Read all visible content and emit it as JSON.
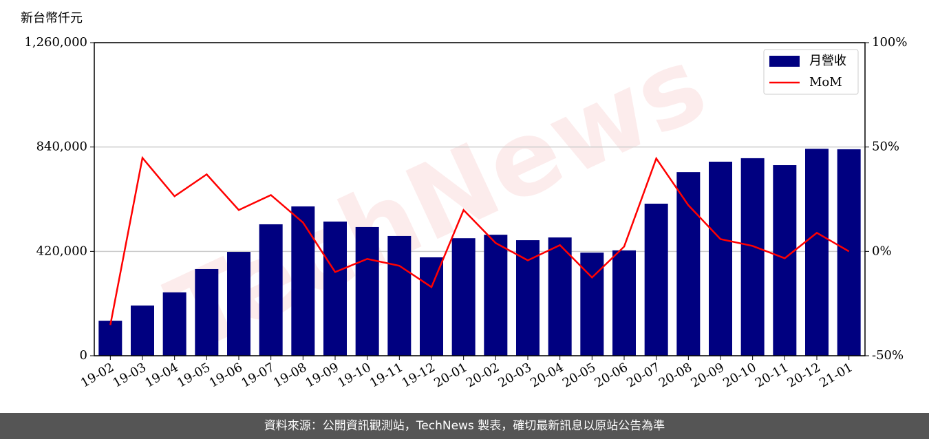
{
  "chart_data": {
    "type": "bar",
    "y_label": "新台幣仟元",
    "watermark": "TechNews",
    "categories": [
      "19-02",
      "19-03",
      "19-04",
      "19-05",
      "19-06",
      "19-07",
      "19-08",
      "19-09",
      "19-10",
      "19-11",
      "19-12",
      "20-01",
      "20-02",
      "20-03",
      "20-04",
      "20-05",
      "20-06",
      "20-07",
      "20-08",
      "20-09",
      "20-10",
      "20-11",
      "20-12",
      "21-01"
    ],
    "series": [
      {
        "name": "月營收",
        "type": "bar",
        "color": "#000080",
        "values": [
          141000,
          202000,
          255000,
          349000,
          418000,
          529000,
          601000,
          540000,
          518000,
          482000,
          396000,
          473000,
          487000,
          465000,
          476000,
          415000,
          424000,
          612000,
          739000,
          781000,
          795000,
          767000,
          833000,
          831000
        ]
      },
      {
        "name": "MoM",
        "type": "line",
        "color": "#ff0000",
        "axis": "y2",
        "values": [
          -35.3,
          44.8,
          26.4,
          36.9,
          19.8,
          27.0,
          13.8,
          -9.9,
          -3.6,
          -6.9,
          -17.1,
          19.8,
          4.0,
          -4.3,
          3.0,
          -12.5,
          2.3,
          44.5,
          22.1,
          5.9,
          2.6,
          -3.3,
          8.9,
          0
        ]
      }
    ],
    "ylim": [
      0,
      1260000
    ],
    "yticks": [
      0,
      {
        "value": 420000,
        "label": "420,000"
      },
      {
        "value": 840000,
        "label": "840,000"
      },
      {
        "value": 1260000,
        "label": "1,260,000"
      }
    ],
    "y2lim": [
      -50,
      100
    ],
    "y2ticks": [
      {
        "value": -50,
        "label": "-50%"
      },
      {
        "value": 0,
        "label": "0%"
      },
      {
        "value": 50,
        "label": "50%"
      },
      {
        "value": 100,
        "label": "100%"
      }
    ],
    "grid": true,
    "legend": "upper right"
  },
  "footer": {
    "source": "資料來源：公開資訊觀測站，TechNews 製表，確切最新訊息以原站公告為準"
  }
}
